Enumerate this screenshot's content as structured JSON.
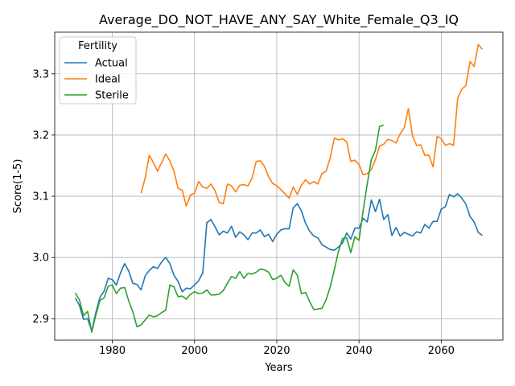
{
  "chart_data": {
    "type": "line",
    "title": "Average_DO_NOT_HAVE_ANY_SAY_White_Female_Q3_IQ",
    "xlabel": "Years",
    "ylabel": "Score(1-5)",
    "xlim": [
      1966,
      2075
    ],
    "ylim": [
      2.865,
      3.368
    ],
    "xticks": [
      1980,
      2000,
      2020,
      2040,
      2060
    ],
    "xtick_labels": [
      "1980",
      "2000",
      "2020",
      "2040",
      "2060"
    ],
    "yticks": [
      2.9,
      3.0,
      3.1,
      3.2,
      3.3
    ],
    "ytick_labels": [
      "2.9",
      "3.0",
      "3.1",
      "3.2",
      "3.3"
    ],
    "grid": true,
    "legend": {
      "title": "Fertility",
      "position": "top-left"
    },
    "series": [
      {
        "name": "Actual",
        "color": "#1f77b4",
        "x": [
          1971,
          1972,
          1973,
          1974,
          1975,
          1976,
          1977,
          1978,
          1979,
          1980,
          1981,
          1982,
          1983,
          1984,
          1985,
          1986,
          1987,
          1988,
          1989,
          1990,
          1991,
          1992,
          1993,
          1994,
          1995,
          1996,
          1997,
          1998,
          1999,
          2000,
          2001,
          2002,
          2003,
          2004,
          2005,
          2006,
          2007,
          2008,
          2009,
          2010,
          2011,
          2012,
          2013,
          2014,
          2015,
          2016,
          2017,
          2018,
          2019,
          2020,
          2021,
          2022,
          2023,
          2024,
          2025,
          2026,
          2027,
          2028,
          2029,
          2030,
          2031,
          2032,
          2033,
          2034,
          2035,
          2036,
          2037,
          2038,
          2039,
          2040,
          2041,
          2042,
          2043,
          2044,
          2045,
          2046,
          2047,
          2048,
          2049,
          2050,
          2051,
          2052,
          2053,
          2054,
          2055,
          2056,
          2057,
          2058,
          2059,
          2060,
          2061,
          2062,
          2063,
          2064,
          2065,
          2066,
          2067,
          2068,
          2069,
          2070
        ],
        "y": [
          2.934,
          2.922,
          2.899,
          2.9,
          2.88,
          2.91,
          2.935,
          2.945,
          2.966,
          2.964,
          2.955,
          2.975,
          2.99,
          2.978,
          2.958,
          2.956,
          2.947,
          2.97,
          2.979,
          2.985,
          2.982,
          2.993,
          3.0,
          2.99,
          2.971,
          2.961,
          2.944,
          2.95,
          2.949,
          2.955,
          2.962,
          2.975,
          3.057,
          3.062,
          3.05,
          3.037,
          3.043,
          3.04,
          3.051,
          3.033,
          3.042,
          3.037,
          3.029,
          3.04,
          3.04,
          3.045,
          3.034,
          3.038,
          3.026,
          3.038,
          3.045,
          3.047,
          3.047,
          3.081,
          3.088,
          3.076,
          3.056,
          3.043,
          3.035,
          3.032,
          3.021,
          3.017,
          3.013,
          3.012,
          3.017,
          3.024,
          3.04,
          3.03,
          3.048,
          3.048,
          3.064,
          3.058,
          3.094,
          3.075,
          3.095,
          3.062,
          3.07,
          3.036,
          3.049,
          3.035,
          3.041,
          3.038,
          3.035,
          3.042,
          3.04,
          3.054,
          3.048,
          3.059,
          3.059,
          3.079,
          3.083,
          3.103,
          3.099,
          3.104,
          3.097,
          3.087,
          3.067,
          3.058,
          3.041,
          3.036
        ]
      },
      {
        "name": "Ideal",
        "color": "#ff7f0e",
        "x": [
          1987,
          1988,
          1989,
          1990,
          1991,
          1992,
          1993,
          1994,
          1995,
          1996,
          1997,
          1998,
          1999,
          2000,
          2001,
          2002,
          2003,
          2004,
          2005,
          2006,
          2007,
          2008,
          2009,
          2010,
          2011,
          2012,
          2013,
          2014,
          2015,
          2016,
          2017,
          2018,
          2019,
          2020,
          2021,
          2022,
          2023,
          2024,
          2025,
          2026,
          2027,
          2028,
          2029,
          2030,
          2031,
          2032,
          2033,
          2034,
          2035,
          2036,
          2037,
          2038,
          2039,
          2040,
          2041,
          2042,
          2043,
          2044,
          2045,
          2046,
          2047,
          2048,
          2049,
          2050,
          2051,
          2052,
          2053,
          2054,
          2055,
          2056,
          2057,
          2058,
          2059,
          2060,
          2061,
          2062,
          2063,
          2064,
          2065,
          2066,
          2067,
          2068,
          2069,
          2070
        ],
        "y": [
          3.105,
          3.13,
          3.167,
          3.155,
          3.141,
          3.155,
          3.169,
          3.158,
          3.141,
          3.113,
          3.11,
          3.084,
          3.102,
          3.105,
          3.124,
          3.115,
          3.113,
          3.12,
          3.109,
          3.09,
          3.088,
          3.12,
          3.117,
          3.107,
          3.118,
          3.119,
          3.117,
          3.13,
          3.157,
          3.158,
          3.149,
          3.132,
          3.121,
          3.117,
          3.111,
          3.104,
          3.097,
          3.115,
          3.103,
          3.118,
          3.127,
          3.12,
          3.124,
          3.12,
          3.137,
          3.141,
          3.163,
          3.195,
          3.192,
          3.194,
          3.189,
          3.157,
          3.159,
          3.152,
          3.135,
          3.137,
          3.144,
          3.16,
          3.182,
          3.185,
          3.193,
          3.191,
          3.187,
          3.202,
          3.212,
          3.243,
          3.199,
          3.183,
          3.184,
          3.167,
          3.167,
          3.148,
          3.198,
          3.194,
          3.183,
          3.186,
          3.183,
          3.26,
          3.275,
          3.281,
          3.32,
          3.312,
          3.348,
          3.34
        ]
      },
      {
        "name": "Sterile",
        "color": "#2ca02c",
        "x": [
          1971,
          1972,
          1973,
          1974,
          1975,
          1976,
          1977,
          1978,
          1979,
          1980,
          1981,
          1982,
          1983,
          1984,
          1985,
          1986,
          1987,
          1988,
          1989,
          1990,
          1991,
          1992,
          1993,
          1994,
          1995,
          1996,
          1997,
          1998,
          1999,
          2000,
          2001,
          2002,
          2003,
          2004,
          2005,
          2006,
          2007,
          2008,
          2009,
          2010,
          2011,
          2012,
          2013,
          2014,
          2015,
          2016,
          2017,
          2018,
          2019,
          2020,
          2021,
          2022,
          2023,
          2024,
          2025,
          2026,
          2027,
          2028,
          2029,
          2030,
          2031,
          2032,
          2033,
          2034,
          2035,
          2036,
          2037,
          2038,
          2039,
          2040,
          2041,
          2042,
          2043,
          2044,
          2045,
          2046
        ],
        "y": [
          2.942,
          2.931,
          2.905,
          2.912,
          2.878,
          2.906,
          2.93,
          2.934,
          2.953,
          2.955,
          2.941,
          2.95,
          2.951,
          2.929,
          2.911,
          2.887,
          2.89,
          2.898,
          2.906,
          2.903,
          2.905,
          2.91,
          2.914,
          2.955,
          2.952,
          2.936,
          2.937,
          2.932,
          2.94,
          2.944,
          2.941,
          2.942,
          2.947,
          2.939,
          2.939,
          2.94,
          2.946,
          2.958,
          2.969,
          2.966,
          2.977,
          2.966,
          2.974,
          2.973,
          2.976,
          2.981,
          2.98,
          2.976,
          2.964,
          2.966,
          2.971,
          2.959,
          2.953,
          2.98,
          2.971,
          2.941,
          2.943,
          2.928,
          2.915,
          2.916,
          2.917,
          2.931,
          2.952,
          2.98,
          3.01,
          3.031,
          3.032,
          3.008,
          3.034,
          3.028,
          3.076,
          3.12,
          3.16,
          3.175,
          3.214,
          3.216
        ]
      }
    ]
  }
}
